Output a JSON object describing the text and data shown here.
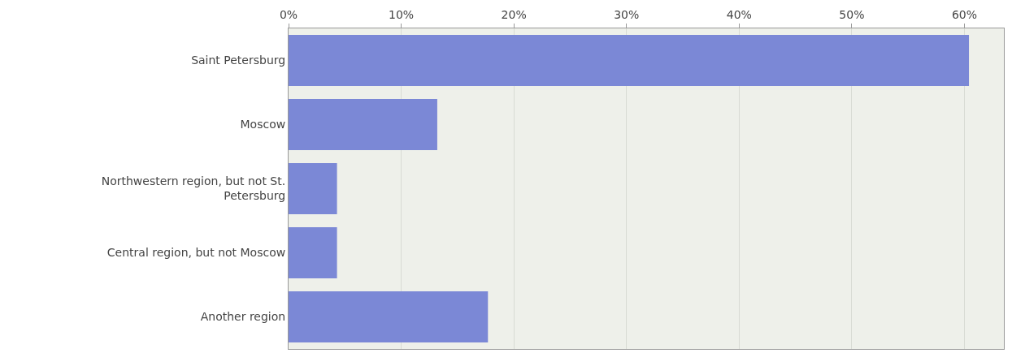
{
  "chart_data": {
    "type": "bar",
    "orientation": "horizontal",
    "categories": [
      "Saint Petersburg",
      "Moscow",
      "Northwestern region, but not St. Petersburg",
      "Central region, but not Moscow",
      "Another region"
    ],
    "values": [
      60.4,
      13.2,
      4.3,
      4.3,
      17.7
    ],
    "color": "#7b88d6",
    "xlim": [
      0,
      63.5
    ],
    "xticks": [
      {
        "value": 0,
        "label": "0%"
      },
      {
        "value": 10,
        "label": "10%"
      },
      {
        "value": 20,
        "label": "20%"
      },
      {
        "value": 30,
        "label": "30%"
      },
      {
        "value": 40,
        "label": "40%"
      },
      {
        "value": 50,
        "label": "50%"
      },
      {
        "value": 60,
        "label": "60%"
      }
    ],
    "grid": "x"
  }
}
